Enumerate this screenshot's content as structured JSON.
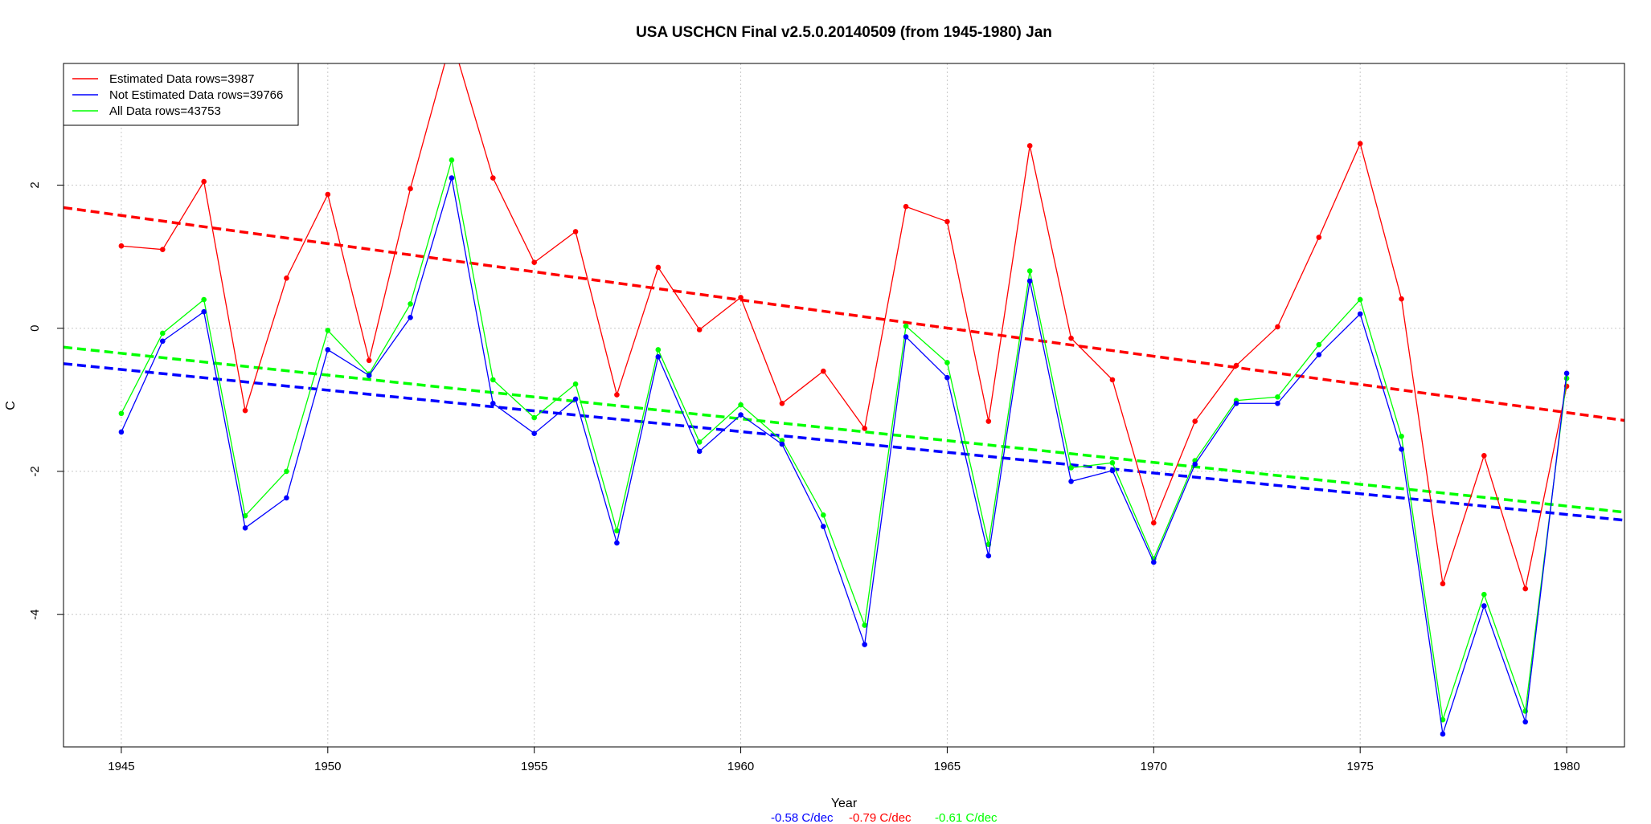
{
  "chart_data": {
    "type": "line",
    "title": "USA USCHCN Final v2.5.0.20140509 (from 1945-1980) Jan",
    "xlabel": "Year",
    "ylabel": "C",
    "xlim": [
      1943.6,
      1981.4
    ],
    "ylim": [
      -5.85,
      3.7
    ],
    "x_ticks": [
      1945,
      1950,
      1955,
      1960,
      1965,
      1970,
      1975,
      1980
    ],
    "y_ticks": [
      -4,
      -2,
      0,
      2
    ],
    "grid": true,
    "legend_position": "top-left",
    "x": [
      1945,
      1946,
      1947,
      1948,
      1949,
      1950,
      1951,
      1952,
      1953,
      1954,
      1955,
      1956,
      1957,
      1958,
      1959,
      1960,
      1961,
      1962,
      1963,
      1964,
      1965,
      1966,
      1967,
      1968,
      1969,
      1970,
      1971,
      1972,
      1973,
      1974,
      1975,
      1976,
      1977,
      1978,
      1979,
      1980
    ],
    "series": [
      {
        "name": "Estimated Data rows=3987",
        "color": "#ff0000",
        "values": [
          1.15,
          1.1,
          2.05,
          -1.15,
          0.7,
          1.87,
          -0.45,
          1.95,
          4.05,
          2.1,
          0.92,
          1.35,
          -0.93,
          0.85,
          -0.02,
          0.43,
          -1.05,
          -0.6,
          -1.4,
          1.7,
          1.49,
          -1.3,
          2.55,
          -0.14,
          -0.72,
          -2.72,
          -1.3,
          -0.52,
          0.02,
          1.27,
          2.58,
          0.41,
          -3.57,
          -1.78,
          -3.64,
          -0.81
        ],
        "trend": [
          1.576,
          -1.178
        ],
        "slope_label": "-0.79 C/dec"
      },
      {
        "name": "Not Estimated Data rows=39766",
        "color": "#0000ff",
        "values": [
          -1.45,
          -0.18,
          0.23,
          -2.79,
          -2.37,
          -0.3,
          -0.66,
          0.15,
          2.1,
          -1.05,
          -1.47,
          -0.99,
          -3.0,
          -0.4,
          -1.72,
          -1.21,
          -1.62,
          -2.77,
          -4.42,
          -0.12,
          -0.69,
          -3.18,
          0.66,
          -2.14,
          -1.99,
          -3.27,
          -1.9,
          -1.05,
          -1.05,
          -0.37,
          0.2,
          -1.69,
          -5.67,
          -3.88,
          -5.5,
          -0.63
        ],
        "trend": [
          -0.576,
          -2.602
        ],
        "slope_label": "-0.58 C/dec"
      },
      {
        "name": "All Data rows=43753",
        "color": "#00ff00",
        "values": [
          -1.19,
          -0.07,
          0.4,
          -2.62,
          -2.0,
          -0.03,
          -0.64,
          0.34,
          2.35,
          -0.72,
          -1.25,
          -0.78,
          -2.83,
          -0.3,
          -1.59,
          -1.07,
          -1.57,
          -2.61,
          -4.15,
          0.03,
          -0.48,
          -3.02,
          0.8,
          -1.95,
          -1.88,
          -3.22,
          -1.85,
          -1.01,
          -0.96,
          -0.23,
          0.4,
          -1.51,
          -5.47,
          -3.72,
          -5.35,
          -0.7
        ],
        "trend": [
          -0.35,
          -2.485
        ],
        "slope_label": "-0.61 C/dec"
      }
    ],
    "slope_order": [
      1,
      0,
      2
    ]
  }
}
